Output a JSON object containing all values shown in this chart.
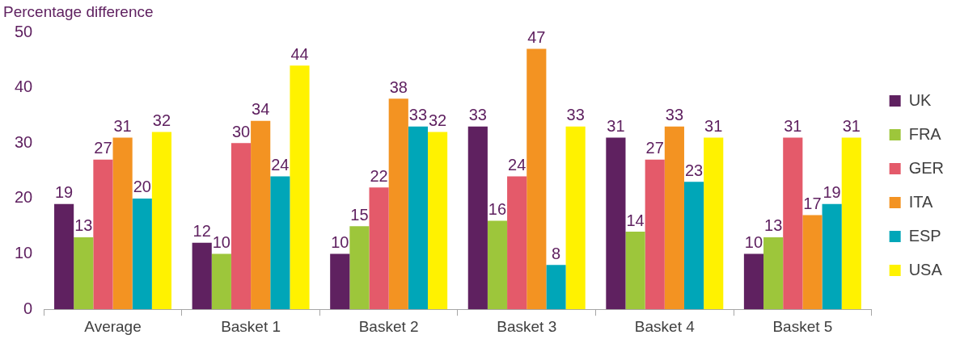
{
  "chart_data": {
    "type": "bar",
    "ylabel": "Percentage difference",
    "categories": [
      "Average",
      "Basket 1",
      "Basket 2",
      "Basket 3",
      "Basket 4",
      "Basket 5"
    ],
    "series": [
      {
        "name": "UK",
        "color": "#5f2160",
        "values": [
          19,
          12,
          10,
          33,
          31,
          10
        ]
      },
      {
        "name": "FRA",
        "color": "#9dc63b",
        "values": [
          13,
          10,
          15,
          16,
          14,
          13
        ]
      },
      {
        "name": "GER",
        "color": "#e45a6a",
        "values": [
          27,
          30,
          22,
          24,
          27,
          31
        ]
      },
      {
        "name": "ITA",
        "color": "#f39322",
        "values": [
          31,
          34,
          38,
          47,
          33,
          17
        ]
      },
      {
        "name": "ESP",
        "color": "#00a6b8",
        "values": [
          20,
          24,
          33,
          8,
          23,
          19
        ]
      },
      {
        "name": "USA",
        "color": "#fff200",
        "values": [
          32,
          44,
          32,
          33,
          31,
          31
        ]
      }
    ],
    "ylim": [
      0,
      50
    ],
    "yticks": [
      0,
      10,
      20,
      30,
      40,
      50
    ],
    "grid": false,
    "legend": "right",
    "data_labels": true
  }
}
